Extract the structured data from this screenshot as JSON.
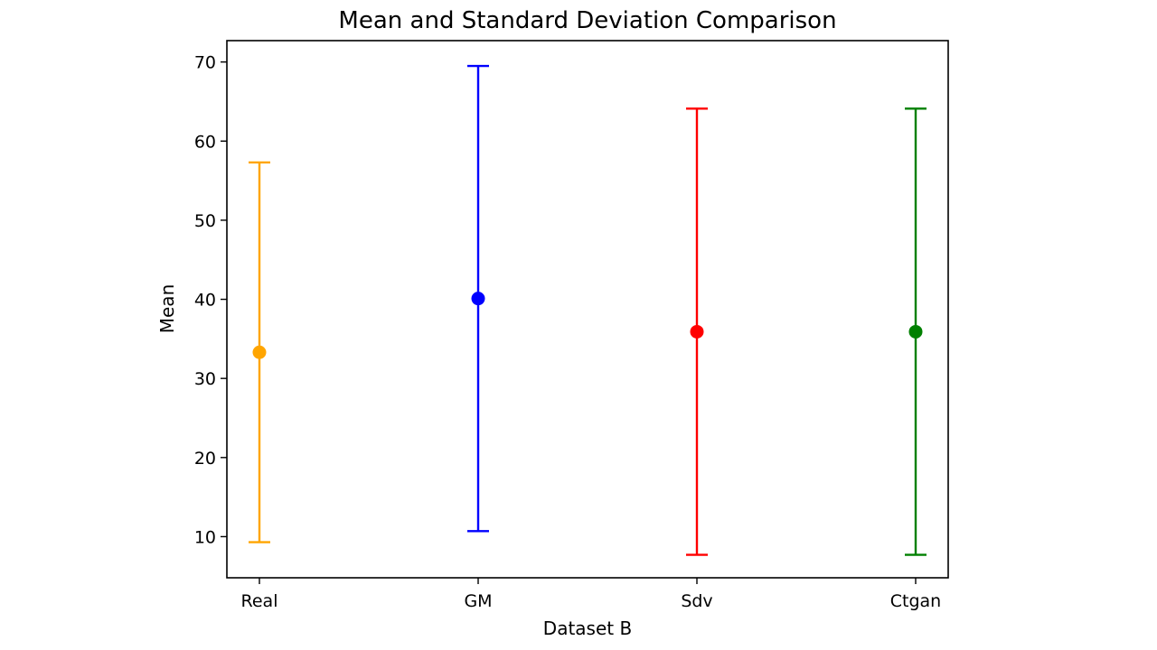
{
  "chart_data": {
    "type": "errorbar",
    "title": "Mean and Standard Deviation Comparison",
    "xlabel": "Dataset B",
    "ylabel": "Mean",
    "categories": [
      "Real",
      "GM",
      "Sdv",
      "Ctgan"
    ],
    "means": [
      33.3,
      40.1,
      35.9,
      35.9
    ],
    "stds": [
      24.0,
      29.4,
      28.2,
      28.2
    ],
    "colors": [
      "#ffa500",
      "#0000ff",
      "#ff0000",
      "#008000"
    ],
    "yticks": [
      10,
      20,
      30,
      40,
      50,
      60,
      70
    ],
    "ylim": [
      4.8,
      72.7
    ],
    "grid": false,
    "legend": "none"
  }
}
